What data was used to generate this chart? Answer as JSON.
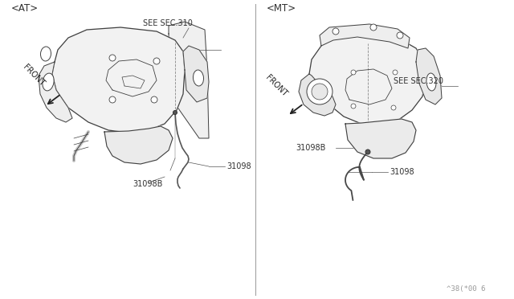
{
  "bg_color": "#ffffff",
  "line_color": "#404040",
  "text_color": "#303030",
  "label_color": "#555555",
  "divider_color": "#999999",
  "at_label": "<AT>",
  "mt_label": "<MT>",
  "part_31098": "31098",
  "part_31098B": "31098B",
  "see_sec_310": "SEE SEC.310",
  "see_sec_320": "SEE SEC.320",
  "front_label": "FRONT",
  "watermark": "^38(*00 6",
  "fig_width": 6.4,
  "fig_height": 3.72,
  "dpi": 100
}
